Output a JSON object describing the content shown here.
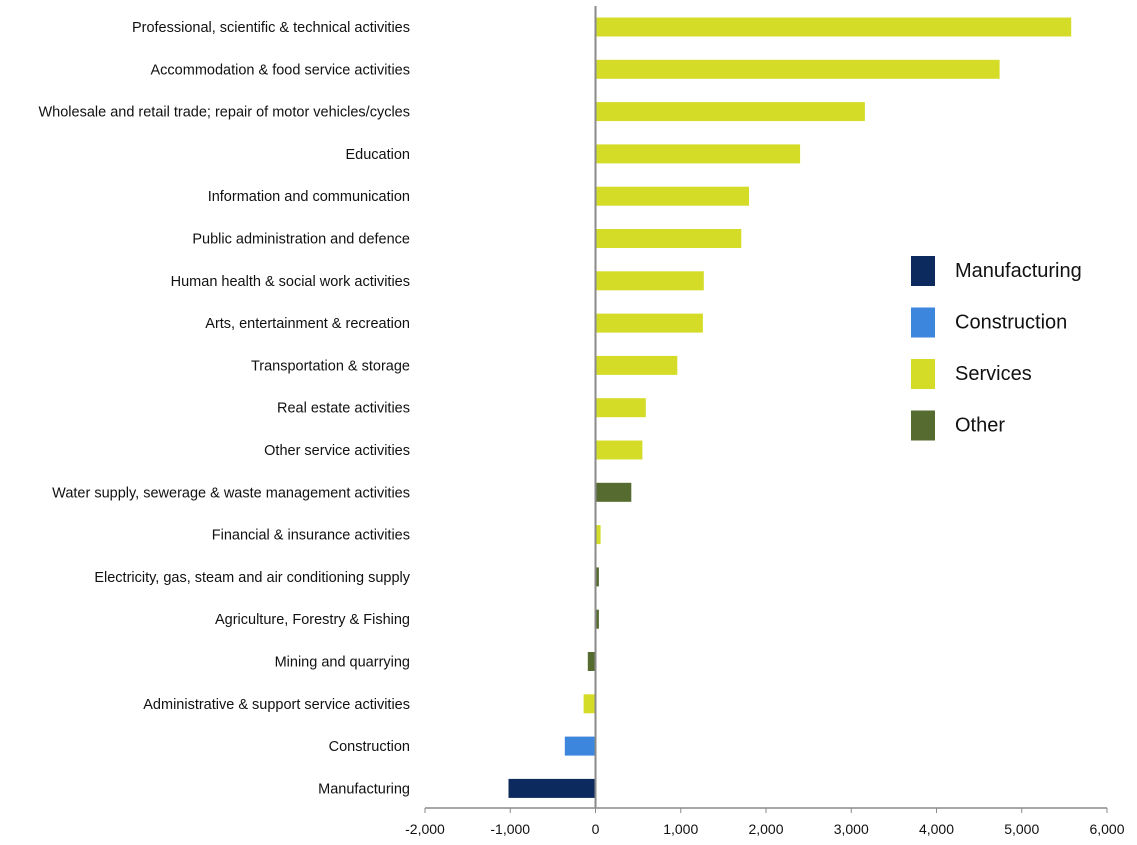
{
  "chart_data": {
    "type": "bar",
    "orientation": "horizontal",
    "title": "",
    "xlabel": "",
    "ylabel": "",
    "xlim": [
      -2000,
      6000
    ],
    "xticks": [
      -2000,
      -1000,
      0,
      1000,
      2000,
      3000,
      4000,
      5000,
      6000
    ],
    "xtick_labels": [
      "-2,000",
      "-1,000",
      "0",
      "1,000",
      "2,000",
      "3,000",
      "4,000",
      "5,000",
      "6,000"
    ],
    "grid": false,
    "legend_position": "right",
    "series_groups": [
      {
        "name": "Manufacturing",
        "color": "#0d2a5e"
      },
      {
        "name": "Construction",
        "color": "#3d86de"
      },
      {
        "name": "Services",
        "color": "#d4dc28"
      },
      {
        "name": "Other",
        "color": "#556b2f"
      }
    ],
    "bars": [
      {
        "category": "Professional, scientific & technical activities",
        "value": 5580,
        "group": "Services"
      },
      {
        "category": "Accommodation & food service activities",
        "value": 4740,
        "group": "Services"
      },
      {
        "category": "Wholesale and retail trade; repair of motor vehicles/cycles",
        "value": 3160,
        "group": "Services"
      },
      {
        "category": "Education",
        "value": 2400,
        "group": "Services"
      },
      {
        "category": "Information and communication",
        "value": 1800,
        "group": "Services"
      },
      {
        "category": "Public administration and defence",
        "value": 1710,
        "group": "Services"
      },
      {
        "category": "Human health & social work activities",
        "value": 1270,
        "group": "Services"
      },
      {
        "category": "Arts, entertainment & recreation",
        "value": 1260,
        "group": "Services"
      },
      {
        "category": "Transportation & storage",
        "value": 960,
        "group": "Services"
      },
      {
        "category": "Real estate activities",
        "value": 590,
        "group": "Services"
      },
      {
        "category": "Other service activities",
        "value": 550,
        "group": "Services"
      },
      {
        "category": "Water supply, sewerage & waste management  activities",
        "value": 420,
        "group": "Other"
      },
      {
        "category": "Financial & insurance activities",
        "value": 60,
        "group": "Services"
      },
      {
        "category": "Electricity, gas, steam and air conditioning supply",
        "value": 40,
        "group": "Other"
      },
      {
        "category": "Agriculture, Forestry & Fishing",
        "value": 40,
        "group": "Other"
      },
      {
        "category": "Mining and quarrying",
        "value": -90,
        "group": "Other"
      },
      {
        "category": "Administrative & support service activities",
        "value": -140,
        "group": "Services"
      },
      {
        "category": "Construction",
        "value": -360,
        "group": "Construction"
      },
      {
        "category": "Manufacturing",
        "value": -1020,
        "group": "Manufacturing"
      }
    ]
  }
}
